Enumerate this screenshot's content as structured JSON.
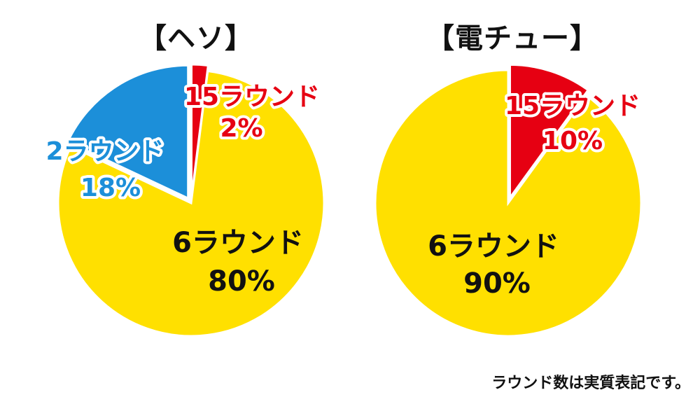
{
  "chart_data": [
    {
      "type": "pie",
      "title": "【ヘソ】",
      "slices": [
        {
          "name": "6ラウンド",
          "value": 80,
          "label": "80%",
          "color": "#FFE000",
          "label_color": "#111111",
          "label_outline": "#FFE000"
        },
        {
          "name": "2ラウンド",
          "value": 18,
          "label": "18%",
          "color": "#1C8FD9",
          "label_color": "#1C8FD9",
          "label_outline": "#FFFFFF"
        },
        {
          "name": "15ラウンド",
          "value": 2,
          "label": "2%",
          "color": "#E60012",
          "label_color": "#E60012",
          "label_outline": "#FFFFFF"
        }
      ]
    },
    {
      "type": "pie",
      "title": "【電チュー】",
      "slices": [
        {
          "name": "6ラウンド",
          "value": 90,
          "label": "90%",
          "color": "#FFE000",
          "label_color": "#111111",
          "label_outline": "#FFE000"
        },
        {
          "name": "15ラウンド",
          "value": 10,
          "label": "10%",
          "color": "#E60012",
          "label_color": "#E60012",
          "label_outline": "#FFFFFF"
        }
      ]
    }
  ],
  "footnote": "ラウンド数は実質表記です。"
}
